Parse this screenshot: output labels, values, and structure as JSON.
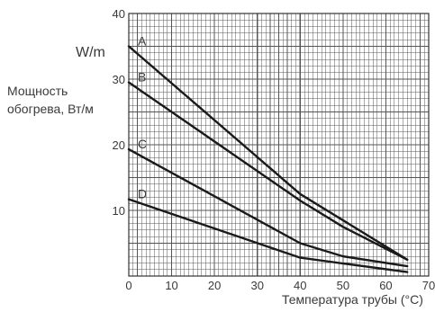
{
  "chart_data": {
    "type": "line",
    "title": "",
    "ylabel_lines": [
      "Мощность",
      "обогрева, Вт/м"
    ],
    "unit_label": "W/m",
    "xlabel": "Температура трубы (°C)",
    "xlim": [
      0,
      70
    ],
    "ylim": [
      0,
      40
    ],
    "x_ticks": [
      0,
      10,
      20,
      30,
      40,
      50,
      60,
      70
    ],
    "y_ticks": [
      10,
      20,
      30,
      40
    ],
    "grid": true,
    "grid_minor_step": 1,
    "legend": "labels on lines",
    "series": [
      {
        "name": "A",
        "x": [
          0,
          40,
          65
        ],
        "y": [
          35,
          12.5,
          2.5
        ]
      },
      {
        "name": "B",
        "x": [
          0,
          40,
          50,
          65
        ],
        "y": [
          29.5,
          11.5,
          7.5,
          2.5
        ]
      },
      {
        "name": "C",
        "x": [
          0,
          40,
          50,
          65
        ],
        "y": [
          19.3,
          5,
          3,
          1.5
        ]
      },
      {
        "name": "D",
        "x": [
          0,
          40,
          65
        ],
        "y": [
          11.7,
          2.8,
          0.6
        ]
      }
    ],
    "colors": {
      "line": "#1a1a1a",
      "grid": "#555555",
      "text": "#3a3a3a"
    }
  }
}
